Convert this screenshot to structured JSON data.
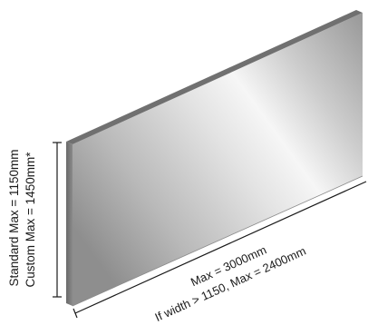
{
  "height_labels": {
    "standard": "Standard Max = 1150mm",
    "custom": "Custom Max = 1450mm*"
  },
  "width_labels": {
    "max": "Max = 3000mm",
    "conditional": "If width > 1150, Max = 2400mm"
  }
}
